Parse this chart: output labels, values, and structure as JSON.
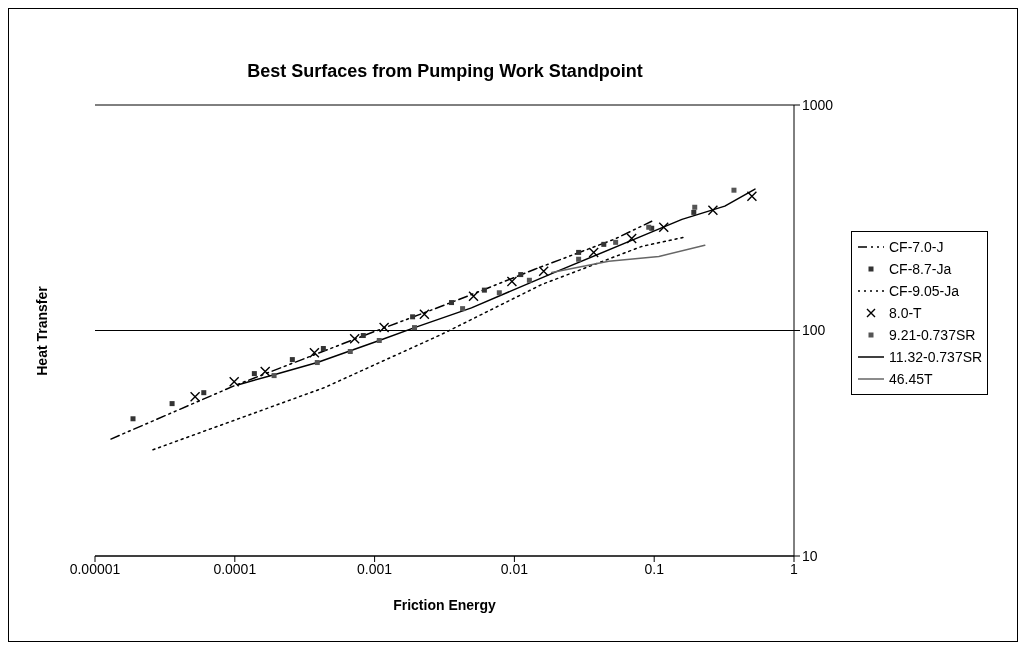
{
  "chart_data": {
    "type": "line",
    "title": "Best Surfaces from Pumping Work Standpoint",
    "xlabel": "Friction Energy",
    "ylabel": "Heat Transfer",
    "log": "xy",
    "xlim": [
      1e-05,
      1
    ],
    "xticks": [
      {
        "value": 1e-05,
        "label": "0.00001"
      },
      0.0001,
      0.001,
      0.01,
      0.1,
      1
    ],
    "ylim": [
      10,
      1000
    ],
    "yticks": [
      10,
      100,
      1000
    ],
    "grid": "y",
    "legend": "right",
    "series": [
      {
        "name": "CF-7.0-J",
        "color": "#000000",
        "marker": "none",
        "line_style": "dashdot",
        "x": [
          1.3e-05,
          0.0001,
          0.001,
          0.003,
          0.0061,
          0.014,
          0.027,
          0.052,
          0.096
        ],
        "values": [
          33,
          57,
          99,
          128,
          152,
          187,
          218,
          254,
          305
        ]
      },
      {
        "name": "CF-8.7-Ja",
        "type": "scatter",
        "color": "#333333",
        "marker": "square",
        "x": [
          1.87e-05,
          3.56e-05,
          6e-05,
          0.000138,
          0.000258,
          0.00043,
          0.00083,
          0.00187,
          0.00355,
          0.0061,
          0.0111,
          0.0288,
          0.0436,
          0.096,
          0.192
        ],
        "values": [
          40.6,
          47.4,
          53,
          64.4,
          74.3,
          83.2,
          95,
          115,
          133,
          151,
          177,
          222,
          241,
          284,
          334
        ]
      },
      {
        "name": "CF-9.05-Ja",
        "color": "#000000",
        "marker": "none",
        "line_style": "dotted",
        "x": [
          2.6e-05,
          0.000437,
          0.003,
          0.0157,
          0.0815,
          0.163
        ],
        "values": [
          29.6,
          55.8,
          96,
          160,
          236,
          259
        ]
      },
      {
        "name": "8.0-T",
        "type": "scatter",
        "color": "#000000",
        "marker": "cross",
        "x": [
          5.2e-05,
          9.9e-05,
          0.000165,
          0.000371,
          0.00072,
          0.00117,
          0.00227,
          0.0051,
          0.0096,
          0.0162,
          0.0369,
          0.069,
          0.117,
          0.263,
          0.5
        ],
        "values": [
          50.9,
          59.3,
          65.8,
          79.7,
          92,
          103,
          118,
          142,
          165,
          183,
          222,
          256,
          287,
          341,
          394
        ]
      },
      {
        "name": "9.21-0.737SR",
        "type": "scatter",
        "color": "#555555",
        "marker": "square",
        "x": [
          0.000191,
          0.000389,
          0.00067,
          0.00108,
          0.00193,
          0.00426,
          0.0078,
          0.0128,
          0.0288,
          0.053,
          0.0914,
          0.195,
          0.372
        ],
        "values": [
          63.1,
          72.1,
          80.7,
          90.3,
          103,
          125,
          147,
          167,
          207,
          246,
          287,
          352,
          419
        ]
      },
      {
        "name": "11.32-0.737SR",
        "color": "#000000",
        "marker": "none",
        "line_style": "solid",
        "x": [
          0.000106,
          0.000191,
          0.000389,
          0.00108,
          0.00193,
          0.00493,
          0.0194,
          0.0815,
          0.158,
          0.32,
          0.526
        ],
        "values": [
          57.5,
          63.7,
          72.1,
          90.3,
          103,
          126,
          181,
          262,
          311,
          356,
          424
        ]
      },
      {
        "name": "46.45T",
        "color": "#666666",
        "marker": "none",
        "line_style": "solid",
        "x": [
          0.0185,
          0.0473,
          0.108,
          0.23
        ],
        "values": [
          181,
          203,
          213,
          239
        ]
      }
    ]
  }
}
